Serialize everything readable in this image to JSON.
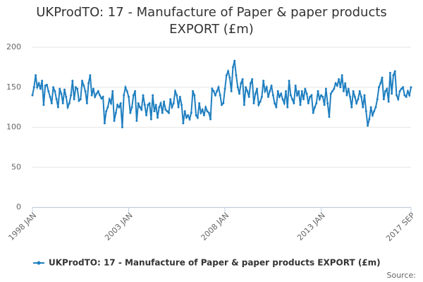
{
  "chart_data": {
    "type": "line",
    "title": "UKProdTO: 17 - Manufacture of Paper & paper products EXPORT (£m)",
    "source_label": "Source:",
    "categories": [
      "1998 JAN",
      null,
      null,
      null,
      null,
      null,
      null,
      null,
      null,
      null,
      null,
      null,
      null,
      null,
      null,
      null,
      null,
      null,
      null,
      null,
      null,
      null,
      null,
      null,
      null,
      null,
      null,
      null,
      null,
      null,
      null,
      null,
      null,
      null,
      null,
      null,
      null,
      null,
      null,
      null,
      null,
      null,
      null,
      null,
      null,
      null,
      null,
      null,
      null,
      null,
      null,
      null,
      null,
      null,
      null,
      null,
      null,
      null,
      null,
      null,
      "2003 JAN",
      null,
      null,
      null,
      null,
      null,
      null,
      null,
      null,
      null,
      null,
      null,
      null,
      null,
      null,
      null,
      null,
      null,
      null,
      null,
      null,
      null,
      null,
      null,
      null,
      null,
      null,
      null,
      null,
      null,
      null,
      null,
      null,
      null,
      null,
      null,
      null,
      null,
      null,
      null,
      null,
      null,
      null,
      null,
      null,
      null,
      null,
      null,
      null,
      null,
      null,
      null,
      null,
      null,
      null,
      null,
      null,
      null,
      null,
      null,
      "2008 JAN",
      null,
      null,
      null,
      null,
      null,
      null,
      null,
      null,
      null,
      null,
      null,
      null,
      null,
      null,
      null,
      null,
      null,
      null,
      null,
      null,
      null,
      null,
      null,
      null,
      null,
      null,
      null,
      null,
      null,
      null,
      null,
      null,
      null,
      null,
      null,
      null,
      null,
      null,
      null,
      null,
      null,
      null,
      null,
      null,
      null,
      null,
      null,
      null,
      null,
      null,
      null,
      null,
      null,
      null,
      null,
      null,
      null,
      null,
      null,
      "2013 JAN",
      null,
      null,
      null,
      null,
      null,
      null,
      null,
      null,
      null,
      null,
      null,
      null,
      null,
      null,
      null,
      null,
      null,
      null,
      null,
      null,
      null,
      null,
      null,
      null,
      null,
      null,
      null,
      null,
      null,
      null,
      null,
      null,
      null,
      null,
      null,
      null,
      null,
      null,
      null,
      null,
      null,
      null,
      null,
      null,
      null,
      null,
      null,
      null,
      null,
      null,
      null,
      null,
      null,
      null,
      null,
      "2017 SEP"
    ],
    "series": [
      {
        "name": "UKProdTO: 17 - Manufacture of Paper & paper products EXPORT (£m)",
        "color": "#1f7fc0",
        "values": [
          140,
          150,
          165,
          150,
          155,
          148,
          158,
          128,
          152,
          153,
          145,
          138,
          130,
          150,
          145,
          135,
          125,
          148,
          142,
          130,
          147,
          138,
          125,
          130,
          140,
          158,
          135,
          150,
          148,
          133,
          135,
          158,
          152,
          145,
          130,
          155,
          165,
          140,
          148,
          138,
          142,
          145,
          140,
          136,
          138,
          105,
          120,
          125,
          135,
          130,
          145,
          108,
          118,
          128,
          125,
          130,
          100,
          140,
          150,
          145,
          138,
          118,
          125,
          140,
          145,
          108,
          130,
          125,
          122,
          140,
          128,
          115,
          128,
          130,
          110,
          140,
          120,
          128,
          112,
          125,
          130,
          118,
          132,
          122,
          120,
          118,
          135,
          125,
          130,
          145,
          140,
          125,
          138,
          128,
          105,
          120,
          112,
          115,
          110,
          118,
          145,
          140,
          115,
          112,
          130,
          118,
          122,
          115,
          125,
          120,
          118,
          110,
          148,
          145,
          140,
          145,
          150,
          140,
          128,
          130,
          148,
          165,
          170,
          162,
          145,
          175,
          183,
          165,
          150,
          142,
          155,
          160,
          128,
          150,
          145,
          138,
          155,
          160,
          130,
          142,
          148,
          128,
          132,
          138,
          158,
          145,
          150,
          138,
          145,
          152,
          140,
          130,
          125,
          145,
          138,
          142,
          135,
          130,
          145,
          125,
          158,
          140,
          135,
          130,
          152,
          140,
          145,
          128,
          145,
          135,
          148,
          142,
          130,
          138,
          140,
          118,
          125,
          130,
          145,
          135,
          140,
          138,
          128,
          148,
          130,
          113,
          142,
          145,
          148,
          155,
          152,
          160,
          150,
          165,
          145,
          155,
          140,
          148,
          138,
          125,
          145,
          138,
          130,
          135,
          145,
          138,
          125,
          140,
          120,
          102,
          110,
          125,
          115,
          120,
          125,
          135,
          150,
          155,
          162,
          135,
          145,
          148,
          132,
          168,
          142,
          165,
          170,
          140,
          135,
          145,
          148,
          150,
          140,
          138,
          145,
          140,
          150
        ]
      }
    ],
    "ylim": [
      0,
      200
    ],
    "yticks": [
      0,
      50,
      100,
      150,
      200
    ],
    "grid": true
  }
}
